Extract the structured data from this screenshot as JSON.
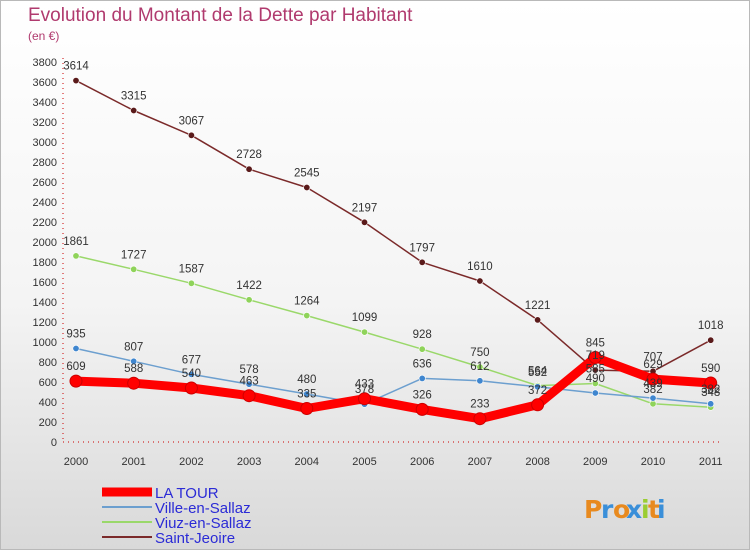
{
  "title": "Evolution du Montant de la Dette par Habitant",
  "subtitle": "(en €)",
  "logo": "Proxiti",
  "chart_data": {
    "type": "line",
    "title": "Evolution du Montant de la Dette par Habitant",
    "ylabel": "(en €)",
    "xlabel": "",
    "ylim": [
      0,
      3800
    ],
    "ytick_step": 200,
    "grid": false,
    "legend_position": "bottom-left",
    "x": [
      "2000",
      "2001",
      "2002",
      "2003",
      "2004",
      "2005",
      "2006",
      "2007",
      "2008",
      "2009",
      "2010",
      "2011"
    ],
    "series": [
      {
        "name": "Saint-Jeoire",
        "color": "#7b2a2a",
        "marker": "#5a1a1a",
        "values": [
          3614,
          3315,
          3067,
          2728,
          2545,
          2197,
          1797,
          1610,
          1221,
          719,
          707,
          1018
        ]
      },
      {
        "name": "Viuz-en-Sallaz",
        "color": "#9ad86a",
        "marker": "#8fd35a",
        "values": [
          1861,
          1727,
          1587,
          1422,
          1264,
          1099,
          928,
          750,
          564,
          585,
          382,
          348
        ]
      },
      {
        "name": "Ville-en-Sallaz",
        "color": "#6c9fcf",
        "marker": "#3f86cf",
        "values": [
          935,
          807,
          677,
          578,
          480,
          378,
          636,
          612,
          552,
          490,
          439,
          382
        ]
      },
      {
        "name": "LA TOUR",
        "color": "#ff0000",
        "marker": "#ff0000",
        "values": [
          609,
          588,
          540,
          463,
          335,
          433,
          326,
          233,
          372,
          845,
          629,
          590
        ]
      }
    ],
    "legend": [
      "LA TOUR",
      "Ville-en-Sallaz",
      "Viuz-en-Sallaz",
      "Saint-Jeoire"
    ]
  }
}
